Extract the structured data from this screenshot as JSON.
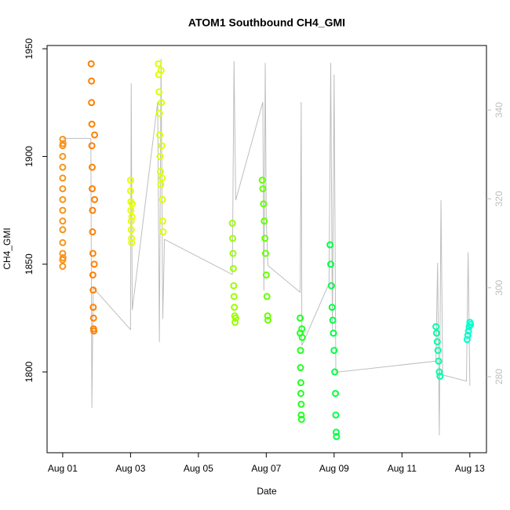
{
  "chart_data": {
    "type": "scatter",
    "title": "ATOM1 Southbound CH4_GMI",
    "x_label": "Date",
    "y_label": "CH4_GMI",
    "xlim": [
      -0.46,
      12.49
    ],
    "xticks": [
      {
        "value": 0,
        "label": "Aug 01"
      },
      {
        "value": 2,
        "label": "Aug 03"
      },
      {
        "value": 4,
        "label": "Aug 05"
      },
      {
        "value": 6,
        "label": "Aug 07"
      },
      {
        "value": 8,
        "label": "Aug 09"
      },
      {
        "value": 10,
        "label": "Aug 11"
      },
      {
        "value": 12,
        "label": "Aug 13"
      }
    ],
    "ylim": [
      1762.5,
      1951.5
    ],
    "yticks": [
      1800,
      1850,
      1900,
      1950
    ],
    "y2lim": [
      262.9,
      354.5
    ],
    "y2ticks": [
      280,
      300,
      320,
      340
    ],
    "y2_color": "#bebebe",
    "series": [
      {
        "axis": "y2",
        "color": "#bebebe",
        "x": [
          0,
          0.83,
          0.86,
          0.9,
          2.0,
          2.02,
          2.05,
          2.8,
          2.85,
          2.9,
          2.95,
          3.0,
          5.0,
          5.05,
          5.1,
          5.9,
          5.93,
          5.97,
          6.0,
          6.05,
          7.0,
          7.03,
          7.05,
          7.85,
          7.9,
          7.95,
          8.0,
          8.05,
          11.0,
          11.05,
          11.1,
          11.15,
          11.2,
          11.9,
          11.95,
          12.0
        ],
        "values": [
          333.6,
          333.6,
          273,
          300,
          290.6,
          346,
          295,
          341.8,
          287.8,
          351.5,
          293,
          310.9,
          303,
          351,
          319.7,
          341.8,
          299.4,
          350.6,
          315.3,
          305,
          299,
          341.8,
          287,
          301,
          350.6,
          290.6,
          348,
          281,
          283.5,
          305.6,
          266.8,
          319.7,
          280.4,
          279,
          308,
          278
        ]
      },
      {
        "color": "#f7941d",
        "x": [
          0,
          0,
          0,
          0,
          0,
          0,
          0,
          0,
          0,
          0,
          0,
          0,
          0,
          0,
          0.01,
          0.01
        ],
        "values": [
          1908,
          1905,
          1900,
          1895,
          1890,
          1885,
          1880,
          1875,
          1870,
          1866,
          1860,
          1855,
          1852,
          1849,
          1906,
          1853
        ]
      },
      {
        "color": "#ff8000",
        "x": [
          0.84,
          0.85,
          0.85,
          0.86,
          0.86,
          0.87,
          0.87,
          0.88,
          0.88,
          0.89,
          0.89,
          0.9,
          0.9,
          0.91,
          0.91,
          0.92,
          0.93,
          0.94,
          0.94
        ],
        "values": [
          1943,
          1935,
          1925,
          1915,
          1905,
          1895,
          1885,
          1875,
          1865,
          1855,
          1845,
          1838,
          1830,
          1825,
          1820,
          1819,
          1850,
          1880,
          1910
        ]
      },
      {
        "color": "#e6ff00",
        "x": [
          2.0,
          2.0,
          2.01,
          2.01,
          2.02,
          2.02,
          2.03,
          2.03,
          2.04,
          2.05
        ],
        "values": [
          1889,
          1884,
          1879,
          1875,
          1870,
          1866,
          1862,
          1860,
          1872,
          1878
        ]
      },
      {
        "color": "#ddff00",
        "x": [
          2.82,
          2.83,
          2.84,
          2.85,
          2.86,
          2.87,
          2.88,
          2.89,
          2.9,
          2.91,
          2.92,
          2.93,
          2.94,
          2.95,
          2.96
        ],
        "values": [
          1943,
          1938,
          1930,
          1920,
          1910,
          1900,
          1893,
          1887,
          1940,
          1925,
          1905,
          1890,
          1880,
          1870,
          1865
        ]
      },
      {
        "color": "#99ff00",
        "x": [
          5.0,
          5.01,
          5.02,
          5.03,
          5.04,
          5.05,
          5.06,
          5.07,
          5.08,
          5.1
        ],
        "values": [
          1869,
          1862,
          1855,
          1848,
          1840,
          1835,
          1830,
          1826,
          1823,
          1825
        ]
      },
      {
        "color": "#66ff00",
        "x": [
          5.88,
          5.9,
          5.92,
          5.94,
          5.96,
          5.98,
          6.0,
          6.02,
          6.04,
          6.05
        ],
        "values": [
          1889,
          1885,
          1878,
          1870,
          1862,
          1855,
          1845,
          1835,
          1826,
          1824
        ]
      },
      {
        "color": "#22ff22",
        "x": [
          7.0,
          7.0,
          7.01,
          7.01,
          7.02,
          7.02,
          7.03,
          7.03,
          7.04,
          7.05,
          7.06
        ],
        "values": [
          1825,
          1818,
          1810,
          1802,
          1795,
          1790,
          1785,
          1780,
          1778,
          1820,
          1816
        ]
      },
      {
        "color": "#00ff44",
        "x": [
          7.88,
          7.9,
          7.92,
          7.94,
          7.96,
          7.98,
          8.0,
          8.02,
          8.04,
          8.05,
          8.06,
          8.07
        ],
        "values": [
          1859,
          1850,
          1840,
          1830,
          1824,
          1818,
          1810,
          1800,
          1790,
          1780,
          1772,
          1770
        ]
      },
      {
        "color": "#00ffaa",
        "x": [
          11.0,
          11.02,
          11.04,
          11.06,
          11.08,
          11.1,
          11.12
        ],
        "values": [
          1821,
          1818,
          1814,
          1810,
          1805,
          1800,
          1798
        ]
      },
      {
        "color": "#00ffcc",
        "x": [
          11.92,
          11.94,
          11.96,
          11.98,
          12.0,
          12.02
        ],
        "values": [
          1815,
          1817,
          1819,
          1821,
          1823,
          1822
        ]
      }
    ]
  }
}
